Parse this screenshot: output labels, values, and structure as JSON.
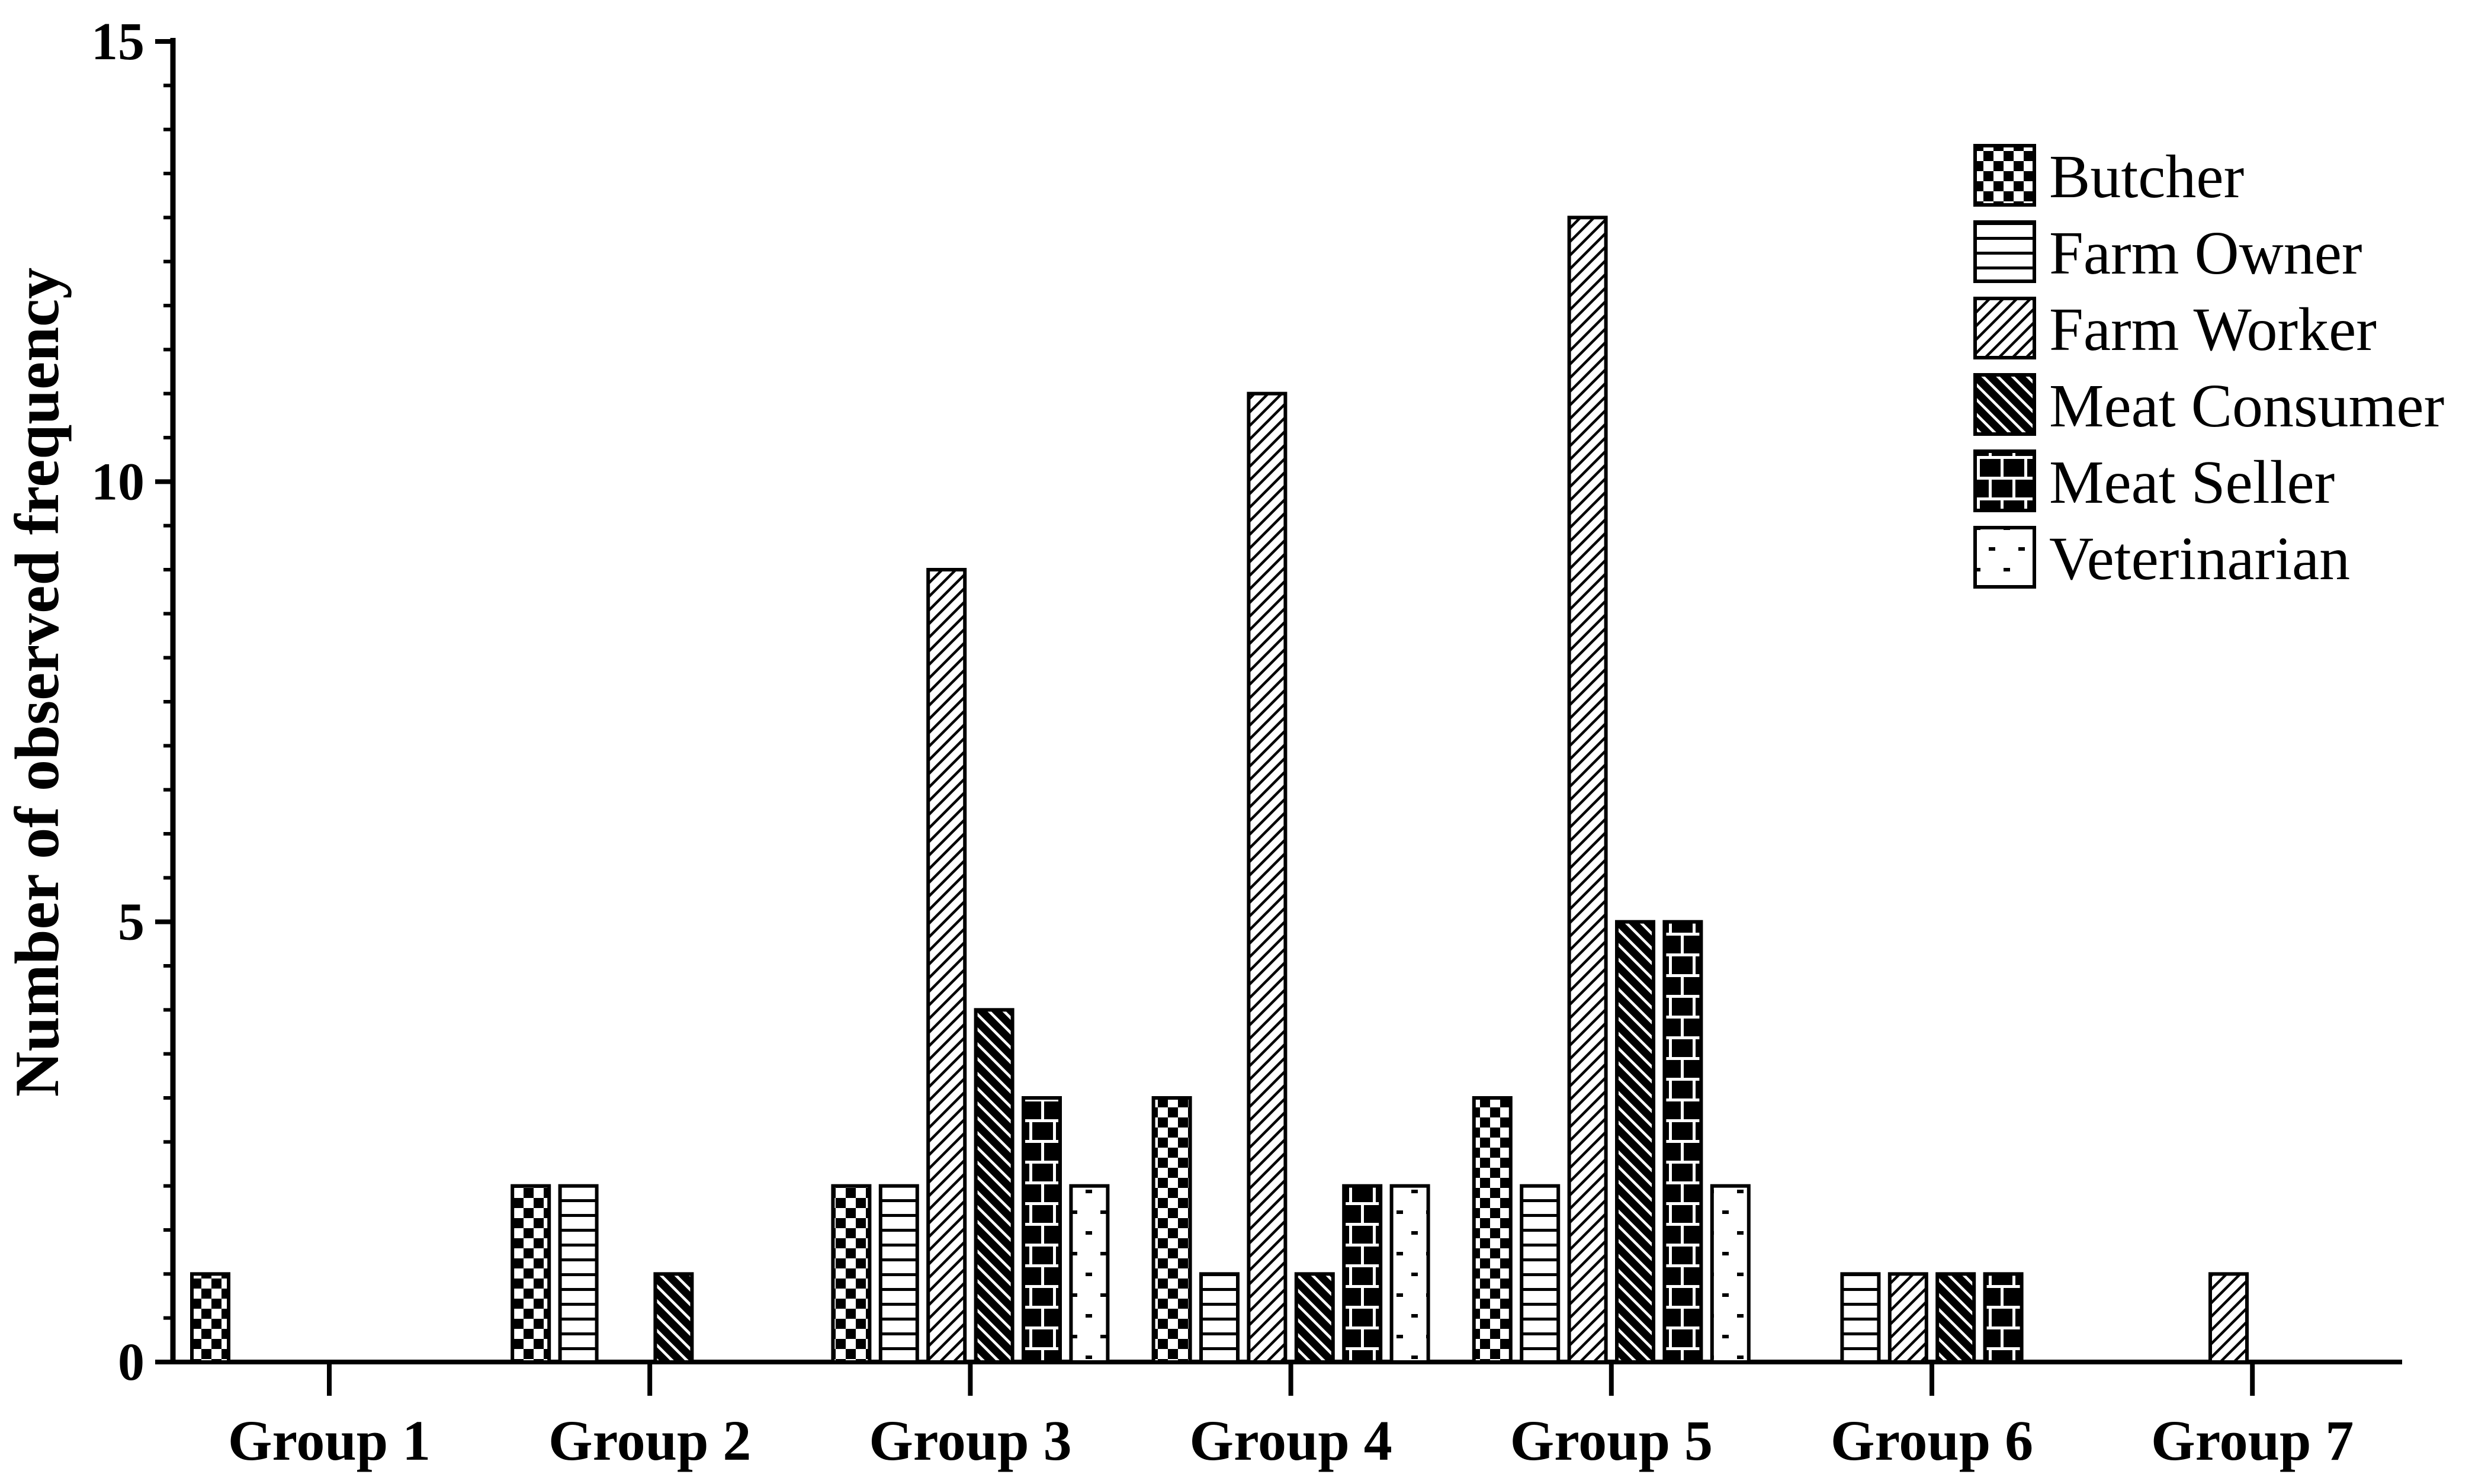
{
  "chart_data": {
    "type": "bar",
    "title": "",
    "categories": [
      "Group 1",
      "Group 2",
      "Group 3",
      "Group 4",
      "Group 5",
      "Group 6",
      "Group 7"
    ],
    "series": [
      {
        "name": "Butcher",
        "pattern": "checker",
        "values": [
          1,
          2,
          2,
          3,
          3,
          0,
          0
        ]
      },
      {
        "name": "Farm Owner",
        "pattern": "hlines",
        "values": [
          0,
          2,
          2,
          1,
          2,
          1,
          0
        ]
      },
      {
        "name": "Farm Worker",
        "pattern": "diag-thin",
        "values": [
          0,
          0,
          9,
          11,
          13,
          1,
          1
        ]
      },
      {
        "name": "Meat Consumer",
        "pattern": "diag-thick",
        "values": [
          0,
          1,
          4,
          1,
          5,
          1,
          0
        ]
      },
      {
        "name": "Meat Seller",
        "pattern": "brick",
        "values": [
          0,
          0,
          3,
          2,
          5,
          1,
          0
        ]
      },
      {
        "name": "Veterinarian",
        "pattern": "dots",
        "values": [
          0,
          0,
          2,
          2,
          2,
          0,
          0
        ]
      }
    ],
    "xlabel": "",
    "ylabel": "Number of observed frequency",
    "ylim": [
      0,
      15
    ],
    "ytick_values": [
      0,
      5,
      10,
      15
    ],
    "ytick_labels": [
      "0",
      "5",
      "10",
      "15"
    ],
    "y_minor_step": 0.5,
    "grid": false,
    "legend_position": "top-right",
    "bar_color": "#000000",
    "background_color": "#ffffff"
  }
}
